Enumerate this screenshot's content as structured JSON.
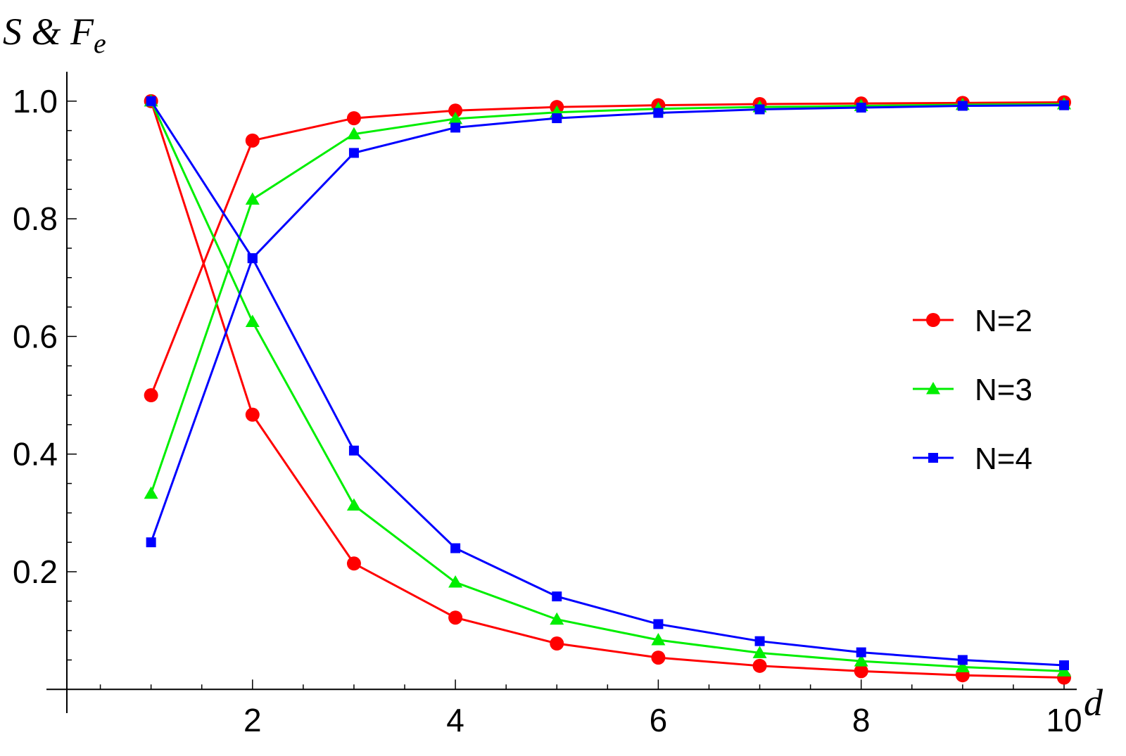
{
  "chart_data": {
    "type": "line",
    "ylabel": "S & F",
    "ylabel_sub": "e",
    "xlabel": "d",
    "xlim": [
      0.17,
      10
    ],
    "ylim": [
      -0.02,
      1.05
    ],
    "x_ticks": [
      2,
      4,
      6,
      8,
      10
    ],
    "x_tick_labels": [
      "2",
      "4",
      "6",
      "8",
      "10"
    ],
    "y_ticks": [
      0.2,
      0.4,
      0.6,
      0.8,
      1.0
    ],
    "y_tick_labels": [
      "0.2",
      "0.4",
      "0.6",
      "0.8",
      "1.0"
    ],
    "legend_position": "right",
    "series": [
      {
        "name": "N=2",
        "color": "#ff0000",
        "marker": "circle",
        "curves": [
          {
            "x": [
              1,
              2,
              3,
              4,
              5,
              6,
              7,
              8,
              9,
              10
            ],
            "y": [
              0.5,
              0.933,
              0.971,
              0.984,
              0.99,
              0.993,
              0.995,
              0.996,
              0.997,
              0.998
            ]
          },
          {
            "x": [
              1,
              2,
              3,
              4,
              5,
              6,
              7,
              8,
              9,
              10
            ],
            "y": [
              1.0,
              0.467,
              0.214,
              0.122,
              0.078,
              0.054,
              0.04,
              0.031,
              0.024,
              0.02
            ]
          }
        ]
      },
      {
        "name": "N=3",
        "color": "#00ee00",
        "marker": "triangle",
        "curves": [
          {
            "x": [
              1,
              2,
              3,
              4,
              5,
              6,
              7,
              8,
              9,
              10
            ],
            "y": [
              0.333,
              0.833,
              0.944,
              0.97,
              0.981,
              0.987,
              0.99,
              0.992,
              0.994,
              0.995
            ]
          },
          {
            "x": [
              1,
              2,
              3,
              4,
              5,
              6,
              7,
              8,
              9,
              10
            ],
            "y": [
              1.0,
              0.625,
              0.313,
              0.182,
              0.119,
              0.084,
              0.062,
              0.048,
              0.038,
              0.031
            ]
          }
        ]
      },
      {
        "name": "N=4",
        "color": "#0000ff",
        "marker": "square",
        "curves": [
          {
            "x": [
              1,
              2,
              3,
              4,
              5,
              6,
              7,
              8,
              9,
              10
            ],
            "y": [
              0.25,
              0.733,
              0.912,
              0.955,
              0.971,
              0.98,
              0.986,
              0.989,
              0.992,
              0.993
            ]
          },
          {
            "x": [
              1,
              2,
              3,
              4,
              5,
              6,
              7,
              8,
              9,
              10
            ],
            "y": [
              1.0,
              0.733,
              0.406,
              0.24,
              0.158,
              0.111,
              0.082,
              0.063,
              0.05,
              0.041
            ]
          }
        ]
      }
    ]
  }
}
